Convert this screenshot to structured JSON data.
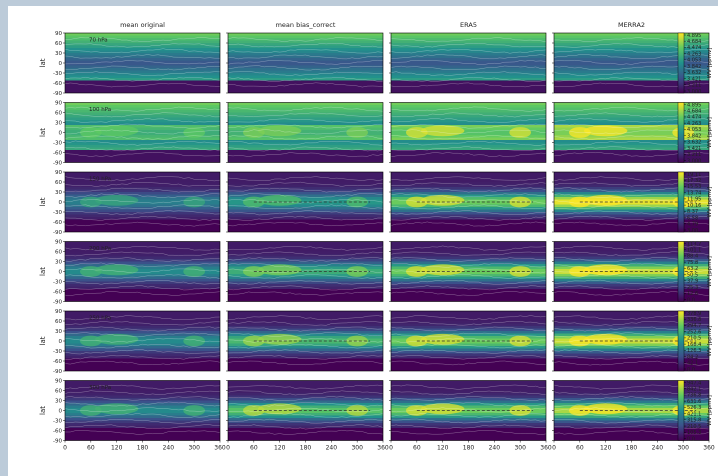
{
  "chart_data": {
    "type": "heatmap",
    "title": "",
    "column_titles": [
      "mean original",
      "mean bias_correct",
      "ERA5",
      "MERRA2"
    ],
    "xlabel": "",
    "ylabel": "lat",
    "colorbar_label": "WV [ppmv]",
    "x_ticks": [
      0,
      60,
      120,
      180,
      240,
      300,
      360
    ],
    "x_tick_labels": [
      "0",
      "60",
      "120",
      "180",
      "240",
      "300",
      "360"
    ],
    "xlim": [
      0,
      360
    ],
    "y_ticks": [
      90,
      60,
      30,
      0,
      -30,
      -60,
      -90
    ],
    "y_tick_labels": [
      "90",
      "60",
      "30",
      "0",
      "-30",
      "-60",
      "-90"
    ],
    "ylim": [
      -90,
      90
    ],
    "rows": [
      {
        "level": "70 hPa",
        "cmin": 3.0,
        "cmax": 4.895,
        "colorbar_ticks": [
          "4.895",
          "4.684",
          "4.474",
          "4.263",
          "4.053",
          "3.842",
          "3.632",
          "3.421",
          "3.211",
          "3.000"
        ],
        "panels": [
          0.55,
          0.5,
          0.45,
          0.42
        ]
      },
      {
        "level": "100 hPa",
        "cmin": 3.0,
        "cmax": 4.895,
        "colorbar_ticks": [
          "4.895",
          "4.684",
          "4.474",
          "4.263",
          "4.053",
          "3.842",
          "3.632",
          "3.421",
          "3.211",
          "3.000"
        ],
        "panels": [
          0.5,
          0.55,
          0.7,
          0.85
        ]
      },
      {
        "level": "150 hPa",
        "cmin": 3.0,
        "cmax": 19.11,
        "colorbar_ticks": [
          "19.11",
          "17.32",
          "15.53",
          "13.74",
          "11.95",
          "10.16",
          "8.37",
          "6.58",
          "4.79",
          "3.00"
        ],
        "panels": [
          0.35,
          0.45,
          0.7,
          0.9
        ]
      },
      {
        "level": "200 hPa",
        "cmin": 0.0,
        "cmax": 113.7,
        "colorbar_ticks": [
          "113.7",
          "101.1",
          "88.4",
          "75.8",
          "63.2",
          "50.5",
          "37.9",
          "25.3",
          "12.6",
          "0.0"
        ],
        "panels": [
          0.4,
          0.55,
          0.7,
          0.85
        ]
      },
      {
        "level": "250 hPa",
        "cmin": 0.0,
        "cmax": 378.9,
        "colorbar_ticks": [
          "378.9",
          "336.8",
          "294.7",
          "252.6",
          "210.5",
          "168.4",
          "126.3",
          "84.2",
          "42.1",
          "0.0"
        ],
        "panels": [
          0.4,
          0.6,
          0.7,
          0.85
        ]
      },
      {
        "level": "300 hPa",
        "cmin": 0.0,
        "cmax": 947.4,
        "colorbar_ticks": [
          "947.4",
          "842.1",
          "736.8",
          "631.6",
          "526.3",
          "421.1",
          "315.8",
          "210.5",
          "105.3",
          "0.0"
        ],
        "panels": [
          0.4,
          0.65,
          0.7,
          0.8
        ]
      }
    ],
    "colormap": [
      "#440154",
      "#3b528b",
      "#21918c",
      "#5ec962",
      "#fde725"
    ]
  }
}
